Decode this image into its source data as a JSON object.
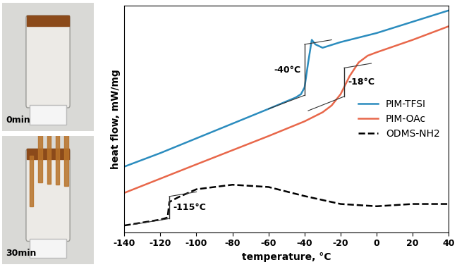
{
  "chart_data": {
    "type": "line",
    "x_label": "temperature, °C",
    "y_label": "heat flow, mW/mg",
    "xlim": [
      -140,
      40
    ],
    "xticks": [
      -140,
      -120,
      -100,
      -80,
      -60,
      -40,
      -20,
      0,
      20,
      40
    ],
    "ylim": [
      0,
      100
    ],
    "tick_labels": "x",
    "legend": "center right",
    "series": [
      {
        "name": "PIM-TFSI",
        "color": "#2b8cbe",
        "line_style": "solid",
        "x": [
          -140,
          -120,
          -100,
          -80,
          -60,
          -45,
          -42,
          -40,
          -38,
          -36,
          -34,
          -30,
          -20,
          0,
          20,
          40
        ],
        "values": [
          29,
          35,
          41.5,
          48,
          54.5,
          59.5,
          61,
          64,
          75,
          85,
          83,
          81.5,
          84,
          88,
          93,
          98
        ]
      },
      {
        "name": "PIM-OAc",
        "color": "#e8674a",
        "line_style": "solid",
        "x": [
          -140,
          -100,
          -60,
          -40,
          -30,
          -25,
          -20,
          -15,
          -10,
          -5,
          0,
          20,
          40
        ],
        "values": [
          17.4,
          30,
          42.5,
          49,
          53,
          56,
          61,
          69,
          75,
          78,
          79.5,
          85,
          91
        ]
      },
      {
        "name": "ODMS-NH2",
        "color": "#000000",
        "line_style": "dashed",
        "x": [
          -140,
          -120,
          -116,
          -115,
          -110,
          -100,
          -80,
          -60,
          -40,
          -20,
          0,
          20,
          40
        ],
        "values": [
          3,
          5.6,
          6.5,
          13.4,
          15.5,
          19,
          21,
          20,
          16,
          12.5,
          11.5,
          12.5,
          12.5
        ]
      }
    ],
    "annotations": [
      {
        "text": "-40°C",
        "x": -40,
        "series": "PIM-TFSI",
        "side": "left"
      },
      {
        "text": "-18°C",
        "x": -18,
        "series": "PIM-OAc",
        "side": "right"
      },
      {
        "text": "-115°C",
        "x": -115,
        "series": "ODMS-NH2",
        "side": "right"
      }
    ]
  },
  "photos": {
    "labels": [
      "0min",
      "30min"
    ]
  }
}
